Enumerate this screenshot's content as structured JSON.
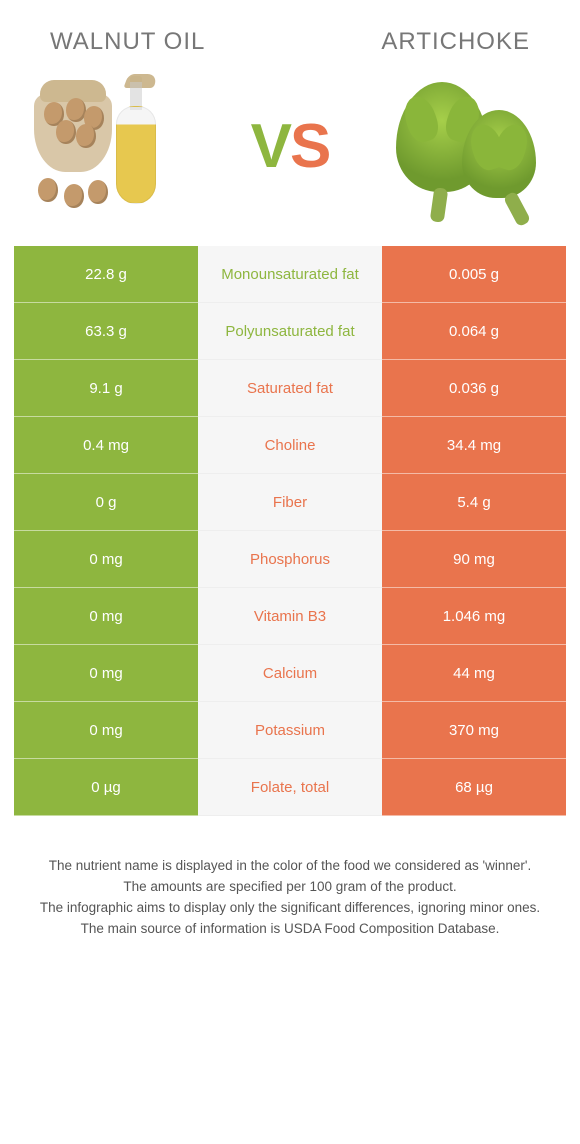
{
  "header": {
    "left_title": "Walnut oil",
    "right_title": "Artichoke",
    "vs_v": "V",
    "vs_s": "S"
  },
  "colors": {
    "left": "#8eb63f",
    "right": "#e9744d",
    "mid_bg": "#f6f6f6",
    "page_bg": "#ffffff"
  },
  "rows": [
    {
      "label": "Monounsaturated fat",
      "winner": "left",
      "left": "22.8 g",
      "right": "0.005 g"
    },
    {
      "label": "Polyunsaturated fat",
      "winner": "left",
      "left": "63.3 g",
      "right": "0.064 g"
    },
    {
      "label": "Saturated fat",
      "winner": "right",
      "left": "9.1 g",
      "right": "0.036 g"
    },
    {
      "label": "Choline",
      "winner": "right",
      "left": "0.4 mg",
      "right": "34.4 mg"
    },
    {
      "label": "Fiber",
      "winner": "right",
      "left": "0 g",
      "right": "5.4 g"
    },
    {
      "label": "Phosphorus",
      "winner": "right",
      "left": "0 mg",
      "right": "90 mg"
    },
    {
      "label": "Vitamin B3",
      "winner": "right",
      "left": "0 mg",
      "right": "1.046 mg"
    },
    {
      "label": "Calcium",
      "winner": "right",
      "left": "0 mg",
      "right": "44 mg"
    },
    {
      "label": "Potassium",
      "winner": "right",
      "left": "0 mg",
      "right": "370 mg"
    },
    {
      "label": "Folate, total",
      "winner": "right",
      "left": "0 µg",
      "right": "68 µg"
    }
  ],
  "footer": {
    "line1": "The nutrient name is displayed in the color of the food we considered as 'winner'.",
    "line2": "The amounts are specified per 100 gram of the product.",
    "line3": "The infographic aims to display only the significant differences, ignoring minor ones.",
    "line4": "The main source of information is USDA Food Composition Database."
  }
}
